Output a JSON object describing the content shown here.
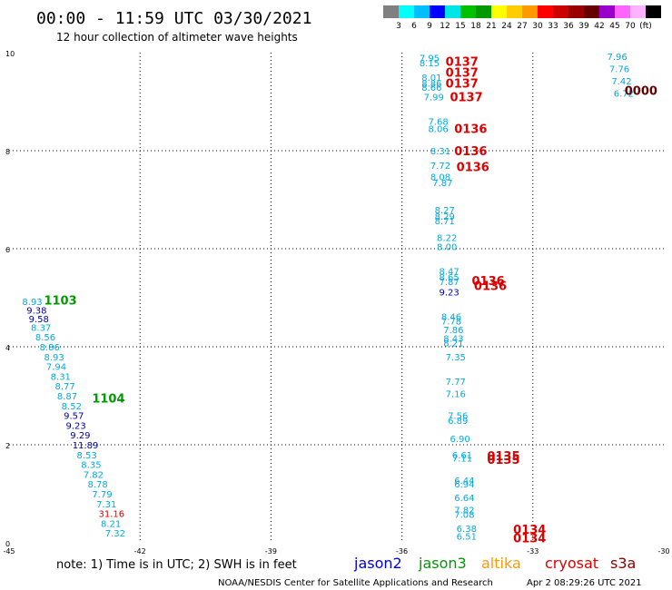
{
  "header": {
    "title": "00:00 - 11:59 UTC 03/30/2021",
    "subtitle": "12 hour collection of altimeter wave heights"
  },
  "colorbar": {
    "colors": [
      "#808080",
      "#00ffff",
      "#00bfff",
      "#0000ff",
      "#00e6e6",
      "#00c000",
      "#009900",
      "#ffff00",
      "#ffcc00",
      "#ff9900",
      "#ff0000",
      "#cc0000",
      "#990000",
      "#660000",
      "#9900cc",
      "#ff66ff",
      "#ffb3ff",
      "#000000"
    ],
    "labels": [
      "3",
      "6",
      "9",
      "12",
      "15",
      "18",
      "21",
      "24",
      "27",
      "30",
      "33",
      "36",
      "39",
      "42",
      "45",
      "70",
      "(ft)"
    ]
  },
  "axes": {
    "x_ticks": [
      "-45",
      "-42",
      "-39",
      "-36",
      "-33",
      "-30"
    ],
    "y_ticks": [
      "0",
      "2",
      "4",
      "6",
      "8",
      "10"
    ]
  },
  "legend": {
    "note": "note: 1) Time is in UTC; 2) SWH is in feet",
    "satellites": [
      {
        "name": "jason2",
        "color": "#0000dd"
      },
      {
        "name": "jason3",
        "color": "#009900"
      },
      {
        "name": "altika",
        "color": "#ff9900"
      },
      {
        "name": "cryosat",
        "color": "#dd0000"
      },
      {
        "name": "s3a",
        "color": "#880000"
      }
    ]
  },
  "footer": {
    "credit": "NOAA/NESDIS Center for Satellite Applications and Research",
    "timestamp": "Apr  2 08:29:26 UTC 2021"
  },
  "chart_data": {
    "type": "scatter",
    "xlim": [
      -45,
      -30
    ],
    "ylim": [
      0,
      10
    ],
    "grid": true,
    "swh_labels": [
      {
        "x": -44.7,
        "y": 4.93,
        "v": "8.93",
        "c": "#00aadd"
      },
      {
        "x": -44.6,
        "y": 4.75,
        "v": "9.38",
        "c": "#0000aa"
      },
      {
        "x": -44.55,
        "y": 4.57,
        "v": "9.58",
        "c": "#0000aa"
      },
      {
        "x": -44.5,
        "y": 4.4,
        "v": "8.37",
        "c": "#00aadd"
      },
      {
        "x": -44.4,
        "y": 4.2,
        "v": "8.56",
        "c": "#00aadd"
      },
      {
        "x": -44.3,
        "y": 4.0,
        "v": "8.86",
        "c": "#00aadd"
      },
      {
        "x": -44.2,
        "y": 3.8,
        "v": "8.93",
        "c": "#00aadd"
      },
      {
        "x": -44.15,
        "y": 3.6,
        "v": "7.94",
        "c": "#00aadd"
      },
      {
        "x": -44.05,
        "y": 3.4,
        "v": "8.31",
        "c": "#00aadd"
      },
      {
        "x": -43.95,
        "y": 3.2,
        "v": "8.77",
        "c": "#00aadd"
      },
      {
        "x": -43.9,
        "y": 3.0,
        "v": "8.87",
        "c": "#00aadd"
      },
      {
        "x": -43.8,
        "y": 2.8,
        "v": "8.52",
        "c": "#00aadd"
      },
      {
        "x": -43.75,
        "y": 2.6,
        "v": "9.57",
        "c": "#0000aa"
      },
      {
        "x": -43.7,
        "y": 2.4,
        "v": "9.23",
        "c": "#0000aa"
      },
      {
        "x": -43.6,
        "y": 2.2,
        "v": "9.29",
        "c": "#0000aa"
      },
      {
        "x": -43.55,
        "y": 2.0,
        "v": "11.89",
        "c": "#0000aa"
      },
      {
        "x": -43.45,
        "y": 1.8,
        "v": "8.53",
        "c": "#00aadd"
      },
      {
        "x": -43.35,
        "y": 1.6,
        "v": "8.35",
        "c": "#00aadd"
      },
      {
        "x": -43.3,
        "y": 1.4,
        "v": "7.82",
        "c": "#00aadd"
      },
      {
        "x": -43.2,
        "y": 1.2,
        "v": "8.78",
        "c": "#00aadd"
      },
      {
        "x": -43.1,
        "y": 1.0,
        "v": "7.79",
        "c": "#00aadd"
      },
      {
        "x": -43.0,
        "y": 0.8,
        "v": "7.31",
        "c": "#00aadd"
      },
      {
        "x": -42.95,
        "y": 0.6,
        "v": "31.16",
        "c": "#dd0000"
      },
      {
        "x": -42.9,
        "y": 0.4,
        "v": "8.21",
        "c": "#00aadd"
      },
      {
        "x": -42.8,
        "y": 0.2,
        "v": "7.32",
        "c": "#00aadd"
      },
      {
        "x": -35.6,
        "y": 9.9,
        "v": "7.95",
        "c": "#00aadd"
      },
      {
        "x": -35.6,
        "y": 9.8,
        "v": "8.15",
        "c": "#00aadd"
      },
      {
        "x": -35.55,
        "y": 9.5,
        "v": "8.01",
        "c": "#00aadd"
      },
      {
        "x": -35.55,
        "y": 9.38,
        "v": "8.86",
        "c": "#00aadd"
      },
      {
        "x": -35.55,
        "y": 9.3,
        "v": "8.66",
        "c": "#00aadd"
      },
      {
        "x": -35.5,
        "y": 9.1,
        "v": "7.99",
        "c": "#00aadd"
      },
      {
        "x": -35.4,
        "y": 8.6,
        "v": "7.68",
        "c": "#00aadd"
      },
      {
        "x": -35.4,
        "y": 8.45,
        "v": "8.06",
        "c": "#00aadd"
      },
      {
        "x": -35.35,
        "y": 8.0,
        "v": "8.31",
        "c": "#00aadd"
      },
      {
        "x": -35.35,
        "y": 7.7,
        "v": "7.72",
        "c": "#00aadd"
      },
      {
        "x": -35.35,
        "y": 7.47,
        "v": "8.08",
        "c": "#00aadd"
      },
      {
        "x": -35.3,
        "y": 7.35,
        "v": "7.87",
        "c": "#00aadd"
      },
      {
        "x": -35.25,
        "y": 6.8,
        "v": "8.27",
        "c": "#00aadd"
      },
      {
        "x": -35.25,
        "y": 6.67,
        "v": "8.29",
        "c": "#00aadd"
      },
      {
        "x": -35.25,
        "y": 6.57,
        "v": "8.71",
        "c": "#00aadd"
      },
      {
        "x": -35.2,
        "y": 6.23,
        "v": "8.22",
        "c": "#00aadd"
      },
      {
        "x": -35.2,
        "y": 6.05,
        "v": "8.00",
        "c": "#00aadd"
      },
      {
        "x": -35.15,
        "y": 5.55,
        "v": "8.47",
        "c": "#00aadd"
      },
      {
        "x": -35.15,
        "y": 5.43,
        "v": "8.65",
        "c": "#00aadd"
      },
      {
        "x": -35.15,
        "y": 5.33,
        "v": "7.87",
        "c": "#00aadd"
      },
      {
        "x": -35.15,
        "y": 5.12,
        "v": "9.23",
        "c": "#0000aa"
      },
      {
        "x": -35.1,
        "y": 4.62,
        "v": "8.46",
        "c": "#00aadd"
      },
      {
        "x": -35.1,
        "y": 4.53,
        "v": "7.78",
        "c": "#00aadd"
      },
      {
        "x": -35.05,
        "y": 4.35,
        "v": "7.86",
        "c": "#00aadd"
      },
      {
        "x": -35.05,
        "y": 4.18,
        "v": "8.43",
        "c": "#00aadd"
      },
      {
        "x": -35.05,
        "y": 4.08,
        "v": "8.21",
        "c": "#00aadd"
      },
      {
        "x": -35.0,
        "y": 3.8,
        "v": "7.35",
        "c": "#00aadd"
      },
      {
        "x": -35.0,
        "y": 3.3,
        "v": "7.77",
        "c": "#00aadd"
      },
      {
        "x": -35.0,
        "y": 3.05,
        "v": "7.16",
        "c": "#00aadd"
      },
      {
        "x": -34.95,
        "y": 2.6,
        "v": "7.56",
        "c": "#00aadd"
      },
      {
        "x": -34.95,
        "y": 2.5,
        "v": "6.89",
        "c": "#00aadd"
      },
      {
        "x": -34.9,
        "y": 2.13,
        "v": "6.90",
        "c": "#00aadd"
      },
      {
        "x": -34.85,
        "y": 1.8,
        "v": "6.61",
        "c": "#00aadd"
      },
      {
        "x": -34.85,
        "y": 1.73,
        "v": "7.11",
        "c": "#00aadd"
      },
      {
        "x": -34.8,
        "y": 1.28,
        "v": "6.44",
        "c": "#00aadd"
      },
      {
        "x": -34.8,
        "y": 1.2,
        "v": "6.94",
        "c": "#00aadd"
      },
      {
        "x": -34.8,
        "y": 0.93,
        "v": "6.64",
        "c": "#00aadd"
      },
      {
        "x": -34.8,
        "y": 0.68,
        "v": "7.82",
        "c": "#00aadd"
      },
      {
        "x": -34.8,
        "y": 0.58,
        "v": "7.08",
        "c": "#00aadd"
      },
      {
        "x": -34.75,
        "y": 0.3,
        "v": "6.38",
        "c": "#00aadd"
      },
      {
        "x": -34.75,
        "y": 0.14,
        "v": "6.51",
        "c": "#00aadd"
      },
      {
        "x": -31.3,
        "y": 9.93,
        "v": "7.96",
        "c": "#00aadd"
      },
      {
        "x": -31.25,
        "y": 9.68,
        "v": "7.76",
        "c": "#00aadd"
      },
      {
        "x": -31.2,
        "y": 9.43,
        "v": "7.42",
        "c": "#00aadd"
      },
      {
        "x": -31.15,
        "y": 9.18,
        "v": "6.72",
        "c": "#00aadd"
      }
    ],
    "pass_labels": [
      {
        "x": -44.2,
        "y": 4.95,
        "v": "1103",
        "c": "#009900"
      },
      {
        "x": -43.1,
        "y": 2.95,
        "v": "1104",
        "c": "#009900"
      },
      {
        "x": -35.0,
        "y": 9.82,
        "v": "0137",
        "c": "#dd0000"
      },
      {
        "x": -35.0,
        "y": 9.6,
        "v": "0137",
        "c": "#dd0000"
      },
      {
        "x": -35.0,
        "y": 9.38,
        "v": "0137",
        "c": "#dd0000"
      },
      {
        "x": -34.9,
        "y": 9.1,
        "v": "0137",
        "c": "#dd0000"
      },
      {
        "x": -34.8,
        "y": 8.45,
        "v": "0136",
        "c": "#dd0000"
      },
      {
        "x": -34.8,
        "y": 8.0,
        "v": "0136",
        "c": "#dd0000"
      },
      {
        "x": -34.75,
        "y": 7.68,
        "v": "0136",
        "c": "#dd0000"
      },
      {
        "x": -34.4,
        "y": 5.35,
        "v": "0136",
        "c": "#dd0000"
      },
      {
        "x": -34.35,
        "y": 5.25,
        "v": "0136",
        "c": "#dd0000"
      },
      {
        "x": -34.05,
        "y": 1.78,
        "v": "0135",
        "c": "#dd0000"
      },
      {
        "x": -34.05,
        "y": 1.7,
        "v": "0135",
        "c": "#dd0000"
      },
      {
        "x": -33.45,
        "y": 0.28,
        "v": "0134",
        "c": "#dd0000"
      },
      {
        "x": -33.45,
        "y": 0.1,
        "v": "0134",
        "c": "#dd0000"
      },
      {
        "x": -30.9,
        "y": 9.23,
        "v": "0000",
        "c": "#660000"
      }
    ]
  }
}
